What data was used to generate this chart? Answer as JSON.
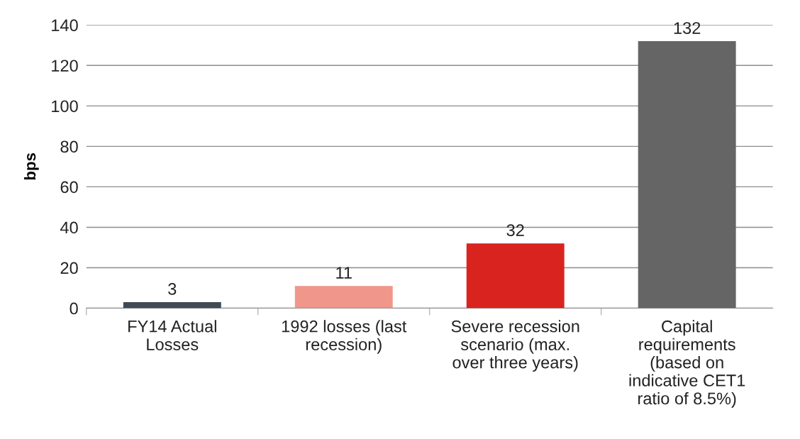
{
  "chart_data": {
    "type": "bar",
    "ylabel": "bps",
    "categories": [
      "FY14 Actual\nLosses",
      "1992 losses (last\nrecession)",
      "Severe recession\nscenario (max.\nover three years)",
      "Capital\nrequirements\n(based on\nindicative CET1\nratio of 8.5%)"
    ],
    "values": [
      3,
      11,
      32,
      132
    ],
    "colors": [
      "#3e4b56",
      "#f0968a",
      "#d9231f",
      "#656565"
    ],
    "data_labels": true,
    "ylim": [
      0,
      140
    ],
    "yticks": [
      0,
      20,
      40,
      60,
      80,
      100,
      120,
      140
    ],
    "grid": "y",
    "legend": false
  }
}
